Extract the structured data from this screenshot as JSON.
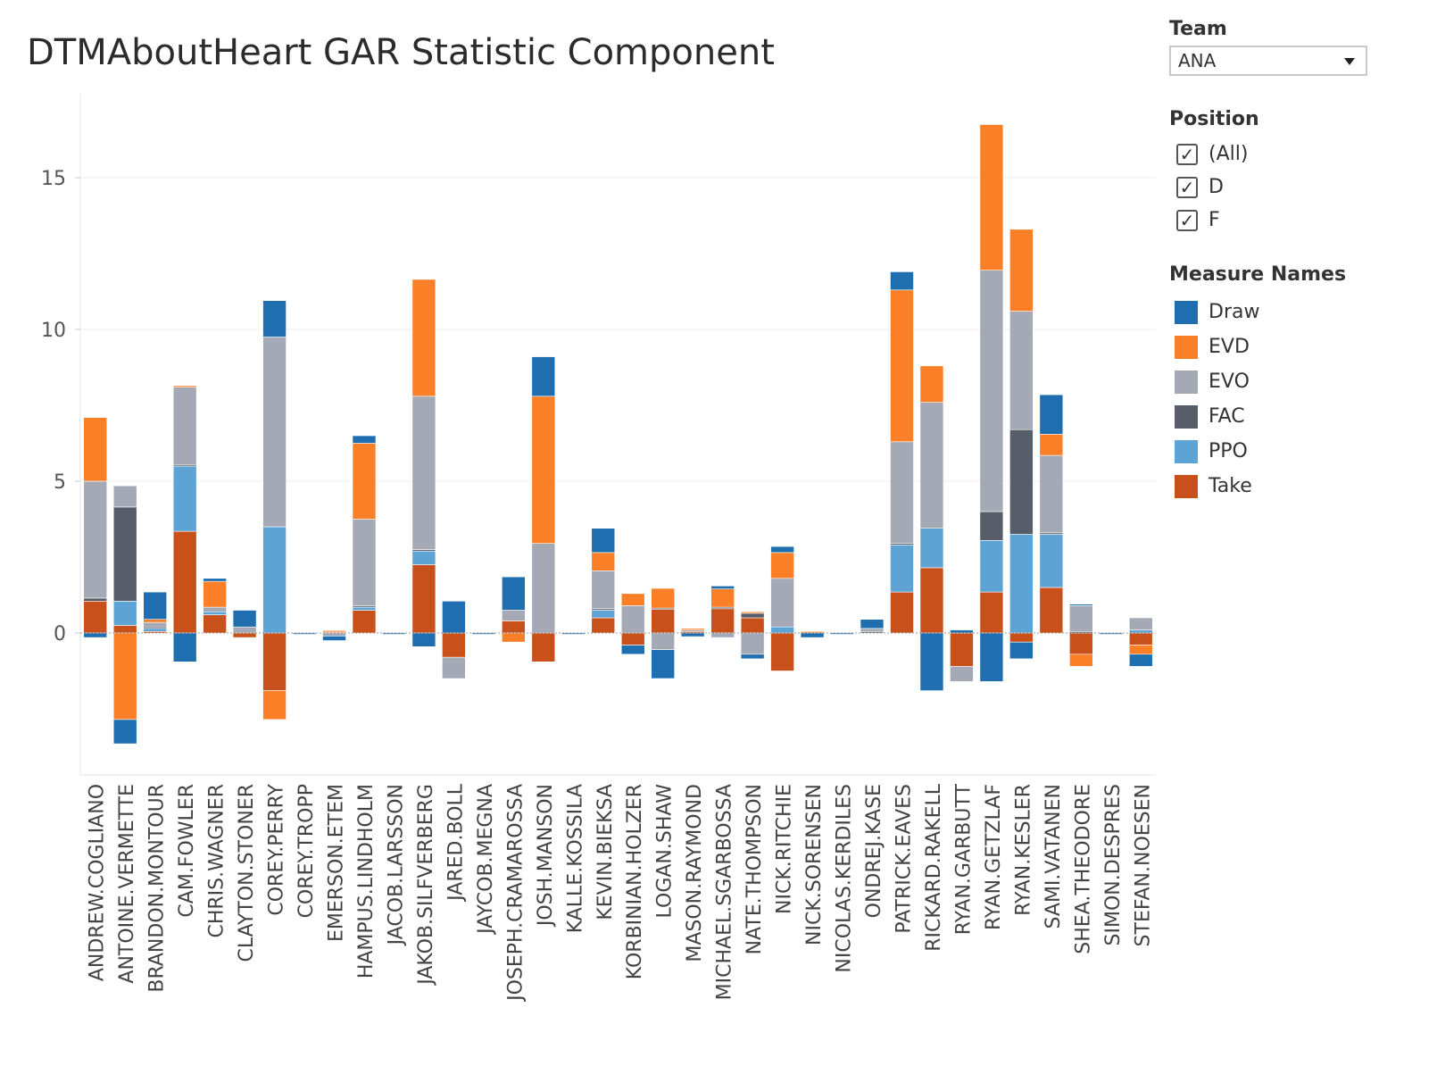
{
  "title": "DTMAboutHeart GAR Statistic Component",
  "filters": {
    "team": {
      "label": "Team",
      "value": "ANA"
    },
    "position": {
      "label": "Position",
      "options": [
        {
          "label": "(All)",
          "checked": true
        },
        {
          "label": "D",
          "checked": true
        },
        {
          "label": "F",
          "checked": true
        }
      ]
    }
  },
  "legend": {
    "title": "Measure Names",
    "items": [
      {
        "label": "Draw",
        "color": "#1f6fb0"
      },
      {
        "label": "EVD",
        "color": "#fa7f27"
      },
      {
        "label": "EVO",
        "color": "#a5a9b5"
      },
      {
        "label": "FAC",
        "color": "#575e69"
      },
      {
        "label": "PPO",
        "color": "#5da3d4"
      },
      {
        "label": "Take",
        "color": "#c8511b"
      }
    ]
  },
  "chart_data": {
    "type": "bar",
    "stacked": true,
    "ylim": [
      -4.7,
      17.8
    ],
    "yticks": [
      0,
      5,
      10,
      15
    ],
    "grid": true,
    "legend_position": "right",
    "categories": [
      "ANDREW.COGLIANO",
      "ANTOINE.VERMETTE",
      "BRANDON.MONTOUR",
      "CAM.FOWLER",
      "CHRIS.WAGNER",
      "CLAYTON.STONER",
      "COREY.PERRY",
      "COREY.TROPP",
      "EMERSON.ETEM",
      "HAMPUS.LINDHOLM",
      "JACOB.LARSSON",
      "JAKOB.SILFVERBERG",
      "JARED.BOLL",
      "JAYCOB.MEGNA",
      "JOSEPH.CRAMAROSSA",
      "JOSH.MANSON",
      "KALLE.KOSSILA",
      "KEVIN.BIEKSA",
      "KORBINIAN.HOLZER",
      "LOGAN.SHAW",
      "MASON.RAYMOND",
      "MICHAEL.SGARBOSSA",
      "NATE.THOMPSON",
      "NICK.RITCHIE",
      "NICK.SORENSEN",
      "NICOLAS.KERDILES",
      "ONDREJ.KASE",
      "PATRICK.EAVES",
      "RICKARD.RAKELL",
      "RYAN.GARBUTT",
      "RYAN.GETZLAF",
      "RYAN.KESLER",
      "SAMI.VATANEN",
      "SHEA.THEODORE",
      "SIMON.DESPRES",
      "STEFAN.NOESEN"
    ],
    "series": [
      {
        "name": "Take",
        "values": [
          1.05,
          0.25,
          0.05,
          3.35,
          0.6,
          -0.15,
          -1.9,
          0,
          0.03,
          0.75,
          0,
          2.25,
          -0.8,
          0,
          0.4,
          -0.95,
          0,
          0.5,
          -0.4,
          0.8,
          0.05,
          0.8,
          0.5,
          -1.25,
          0.03,
          0,
          0,
          1.35,
          2.15,
          -1.1,
          1.35,
          -0.3,
          1.5,
          -0.7,
          0,
          -0.4
        ]
      },
      {
        "name": "PPO",
        "values": [
          0,
          0.8,
          0.1,
          2.15,
          0.1,
          0,
          3.5,
          0,
          0,
          0.1,
          0,
          0.45,
          0,
          0,
          0,
          0,
          0,
          0.25,
          0,
          0,
          0,
          0,
          0,
          0.2,
          0,
          0,
          0,
          1.55,
          1.3,
          0,
          1.7,
          3.25,
          1.75,
          0,
          0,
          0.1
        ]
      },
      {
        "name": "FAC",
        "values": [
          0.1,
          3.1,
          0.05,
          0.05,
          0,
          0,
          0,
          0,
          0,
          0.05,
          0,
          0.05,
          0,
          0,
          0,
          0,
          0,
          0.05,
          0,
          0.02,
          0,
          0.05,
          0.15,
          0,
          0,
          0,
          0.05,
          0.05,
          0,
          0,
          0.95,
          3.45,
          0.05,
          0.05,
          0,
          0
        ]
      },
      {
        "name": "EVO",
        "values": [
          3.85,
          0.7,
          0.15,
          2.55,
          0.15,
          0.2,
          6.25,
          0,
          -0.1,
          2.85,
          0,
          5.05,
          -0.7,
          0,
          0.35,
          2.95,
          0,
          1.25,
          0.9,
          -0.55,
          0.05,
          -0.15,
          -0.7,
          1.6,
          0,
          0,
          0.1,
          3.35,
          4.15,
          -0.5,
          7.95,
          3.9,
          2.55,
          0.85,
          0,
          0.4
        ]
      },
      {
        "name": "EVD",
        "values": [
          2.1,
          -2.85,
          0.1,
          0.05,
          0.85,
          0,
          -0.95,
          0,
          0.05,
          2.5,
          0,
          3.85,
          0,
          0,
          -0.3,
          4.85,
          0,
          0.6,
          0.4,
          0.65,
          0.05,
          0.6,
          0.05,
          0.85,
          0.02,
          0,
          0,
          5.0,
          1.2,
          0,
          4.8,
          2.7,
          0.7,
          -0.4,
          0,
          -0.3
        ]
      },
      {
        "name": "Draw",
        "values": [
          -0.15,
          -0.8,
          0.9,
          -0.95,
          0.1,
          0.55,
          1.2,
          -0.03,
          -0.15,
          0.25,
          -0.03,
          -0.45,
          1.05,
          -0.03,
          1.1,
          1.3,
          -0.03,
          0.8,
          -0.3,
          -0.95,
          -0.12,
          0.1,
          -0.15,
          0.2,
          -0.15,
          -0.03,
          0.3,
          0.6,
          -1.9,
          0.1,
          -1.6,
          -0.55,
          1.3,
          0.05,
          -0.03,
          -0.4
        ]
      }
    ]
  }
}
